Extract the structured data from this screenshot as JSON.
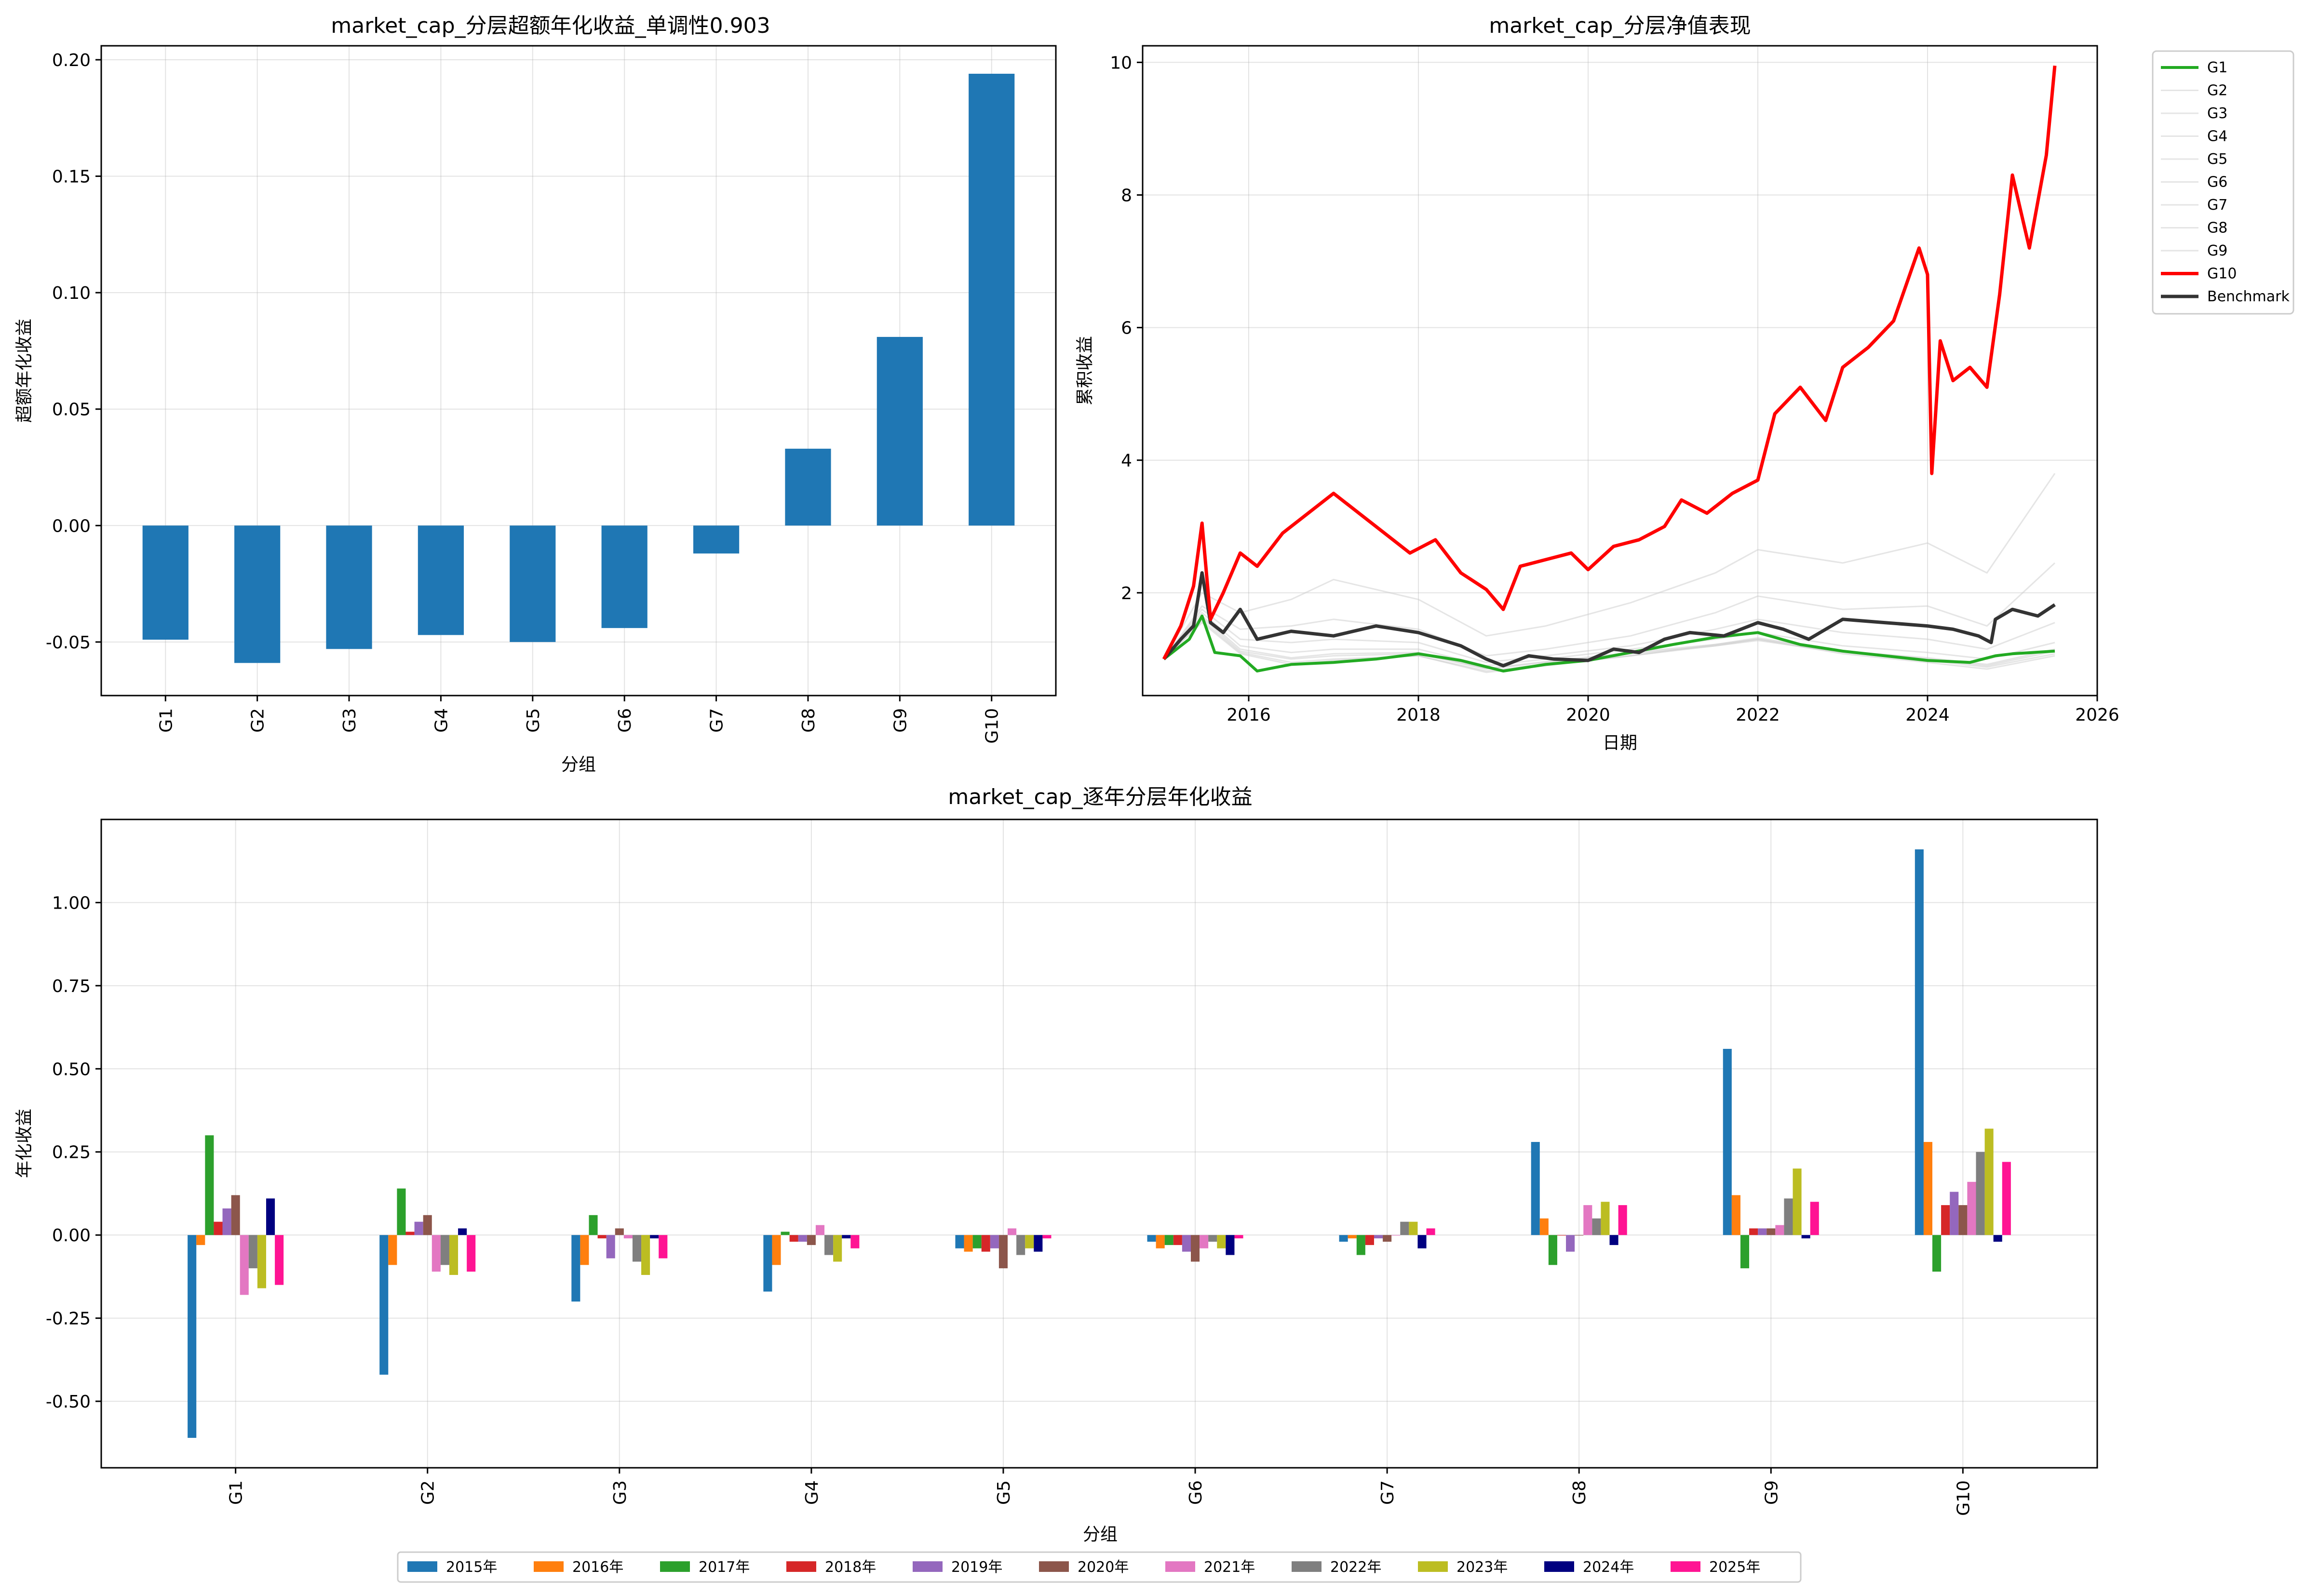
{
  "chart_data": [
    {
      "id": "excess",
      "type": "bar",
      "title": "market_cap_分层超额年化收益_单调性0.903",
      "xlabel": "分组",
      "ylabel": "超额年化收益",
      "categories": [
        "G1",
        "G2",
        "G3",
        "G4",
        "G5",
        "G6",
        "G7",
        "G8",
        "G9",
        "G10"
      ],
      "values": [
        -0.049,
        -0.059,
        -0.053,
        -0.047,
        -0.05,
        -0.044,
        -0.012,
        0.033,
        0.081,
        0.194
      ],
      "ylim": [
        -0.073,
        0.206
      ],
      "yticks": [
        -0.05,
        0.0,
        0.05,
        0.1,
        0.15,
        0.2
      ],
      "ytick_labels": [
        "-0.05",
        "0.00",
        "0.05",
        "0.10",
        "0.15",
        "0.20"
      ],
      "color": "#1f77b4",
      "grid": true
    },
    {
      "id": "nav",
      "type": "line",
      "title": "market_cap_分层净值表现",
      "xlabel": "日期",
      "ylabel": "累积收益",
      "xlim": [
        2014.75,
        2026.0
      ],
      "ylim": [
        0.45,
        10.25
      ],
      "xticks": [
        2016,
        2018,
        2020,
        2022,
        2024,
        2026
      ],
      "xtick_labels": [
        "2016",
        "2018",
        "2020",
        "2022",
        "2024",
        "2026"
      ],
      "yticks": [
        2,
        4,
        6,
        8,
        10
      ],
      "ytick_labels": [
        "2",
        "4",
        "6",
        "8",
        "10"
      ],
      "legend_position": "outside-top-right",
      "grid": true,
      "series": [
        {
          "name": "G1",
          "color": "#22aa22",
          "width": 6,
          "opacity": 1.0,
          "x": [
            2015.0,
            2015.3,
            2015.45,
            2015.6,
            2015.9,
            2016.1,
            2016.5,
            2017.0,
            2017.5,
            2018.0,
            2018.5,
            2019.0,
            2019.5,
            2020.0,
            2020.5,
            2021.0,
            2021.5,
            2022.0,
            2022.5,
            2023.0,
            2023.5,
            2024.0,
            2024.5,
            2024.8,
            2025.0,
            2025.5
          ],
          "y": [
            1.0,
            1.3,
            1.65,
            1.1,
            1.05,
            0.82,
            0.92,
            0.95,
            1.0,
            1.08,
            0.98,
            0.82,
            0.92,
            0.98,
            1.1,
            1.22,
            1.33,
            1.4,
            1.22,
            1.12,
            1.05,
            0.98,
            0.95,
            1.05,
            1.08,
            1.12
          ]
        },
        {
          "name": "G2",
          "color": "#cccccc",
          "width": 3,
          "opacity": 0.5,
          "x": [
            2015.0,
            2015.45,
            2015.9,
            2016.5,
            2017.0,
            2018.0,
            2018.8,
            2019.5,
            2020.5,
            2021.5,
            2022.0,
            2023.0,
            2024.0,
            2024.7,
            2025.5
          ],
          "y": [
            1.0,
            1.55,
            1.08,
            0.92,
            0.98,
            1.05,
            0.8,
            0.9,
            1.05,
            1.22,
            1.3,
            1.08,
            0.95,
            0.85,
            1.05
          ]
        },
        {
          "name": "G3",
          "color": "#cccccc",
          "width": 3,
          "opacity": 0.5,
          "x": [
            2015.0,
            2015.45,
            2015.9,
            2016.5,
            2017.0,
            2018.0,
            2018.8,
            2019.5,
            2020.5,
            2021.5,
            2022.0,
            2023.0,
            2024.0,
            2024.7,
            2025.5
          ],
          "y": [
            1.0,
            1.58,
            1.1,
            0.95,
            1.0,
            1.05,
            0.82,
            0.92,
            1.05,
            1.2,
            1.28,
            1.1,
            0.98,
            0.88,
            1.08
          ]
        },
        {
          "name": "G4",
          "color": "#cccccc",
          "width": 3,
          "opacity": 0.5,
          "x": [
            2015.0,
            2015.45,
            2015.9,
            2016.5,
            2017.0,
            2018.0,
            2018.8,
            2019.5,
            2020.5,
            2021.5,
            2022.0,
            2023.0,
            2024.0,
            2024.7,
            2025.5
          ],
          "y": [
            1.0,
            1.62,
            1.12,
            1.0,
            1.05,
            1.08,
            0.85,
            0.95,
            1.08,
            1.2,
            1.3,
            1.12,
            1.0,
            0.9,
            1.12
          ]
        },
        {
          "name": "G5",
          "color": "#cccccc",
          "width": 3,
          "opacity": 0.5,
          "x": [
            2015.0,
            2015.45,
            2015.9,
            2016.5,
            2017.0,
            2018.0,
            2018.8,
            2019.5,
            2020.5,
            2021.5,
            2022.0,
            2023.0,
            2024.0,
            2024.7,
            2025.5
          ],
          "y": [
            1.0,
            1.65,
            1.15,
            1.02,
            1.08,
            1.1,
            0.86,
            0.96,
            1.1,
            1.22,
            1.32,
            1.12,
            1.02,
            0.92,
            1.15
          ]
        },
        {
          "name": "G6",
          "color": "#cccccc",
          "width": 3,
          "opacity": 0.5,
          "x": [
            2015.0,
            2015.45,
            2015.9,
            2016.5,
            2017.0,
            2018.0,
            2018.8,
            2019.5,
            2020.5,
            2021.5,
            2022.0,
            2023.0,
            2024.0,
            2024.7,
            2025.5
          ],
          "y": [
            1.0,
            1.7,
            1.2,
            1.1,
            1.15,
            1.15,
            0.9,
            1.0,
            1.15,
            1.3,
            1.4,
            1.2,
            1.1,
            1.0,
            1.25
          ]
        },
        {
          "name": "G7",
          "color": "#cccccc",
          "width": 3,
          "opacity": 0.5,
          "x": [
            2015.0,
            2015.45,
            2015.9,
            2016.5,
            2017.0,
            2018.0,
            2018.8,
            2019.5,
            2020.5,
            2021.5,
            2022.0,
            2023.0,
            2024.0,
            2024.7,
            2025.5
          ],
          "y": [
            1.0,
            1.75,
            1.3,
            1.25,
            1.3,
            1.25,
            0.95,
            1.05,
            1.2,
            1.45,
            1.6,
            1.4,
            1.3,
            1.15,
            1.55
          ]
        },
        {
          "name": "G8",
          "color": "#cccccc",
          "width": 3,
          "opacity": 0.5,
          "x": [
            2015.0,
            2015.45,
            2015.9,
            2016.5,
            2017.0,
            2018.0,
            2018.8,
            2019.5,
            2020.5,
            2021.5,
            2022.0,
            2023.0,
            2024.0,
            2024.7,
            2025.5
          ],
          "y": [
            1.0,
            1.8,
            1.45,
            1.5,
            1.6,
            1.45,
            1.05,
            1.15,
            1.35,
            1.7,
            1.95,
            1.75,
            1.8,
            1.5,
            2.45
          ]
        },
        {
          "name": "G9",
          "color": "#cccccc",
          "width": 3,
          "opacity": 0.5,
          "x": [
            2015.0,
            2015.45,
            2015.9,
            2016.5,
            2017.0,
            2018.0,
            2018.8,
            2019.5,
            2020.5,
            2021.5,
            2022.0,
            2023.0,
            2024.0,
            2024.7,
            2025.5
          ],
          "y": [
            1.0,
            2.0,
            1.7,
            1.9,
            2.2,
            1.9,
            1.35,
            1.5,
            1.85,
            2.3,
            2.65,
            2.45,
            2.75,
            2.3,
            3.8
          ]
        },
        {
          "name": "G10",
          "color": "#ff0000",
          "width": 7,
          "opacity": 1.0,
          "x": [
            2015.0,
            2015.2,
            2015.35,
            2015.45,
            2015.55,
            2015.7,
            2015.9,
            2016.1,
            2016.4,
            2016.7,
            2017.0,
            2017.3,
            2017.6,
            2017.9,
            2018.2,
            2018.5,
            2018.8,
            2019.0,
            2019.2,
            2019.5,
            2019.8,
            2020.0,
            2020.3,
            2020.6,
            2020.9,
            2021.1,
            2021.4,
            2021.7,
            2022.0,
            2022.2,
            2022.5,
            2022.8,
            2023.0,
            2023.3,
            2023.6,
            2023.9,
            2024.0,
            2024.05,
            2024.15,
            2024.3,
            2024.5,
            2024.7,
            2024.85,
            2025.0,
            2025.2,
            2025.4,
            2025.5
          ],
          "y": [
            1.0,
            1.5,
            2.1,
            3.05,
            1.6,
            2.0,
            2.6,
            2.4,
            2.9,
            3.2,
            3.5,
            3.2,
            2.9,
            2.6,
            2.8,
            2.3,
            2.05,
            1.75,
            2.4,
            2.5,
            2.6,
            2.35,
            2.7,
            2.8,
            3.0,
            3.4,
            3.2,
            3.5,
            3.7,
            4.7,
            5.1,
            4.6,
            5.4,
            5.7,
            6.1,
            7.2,
            6.8,
            3.8,
            5.8,
            5.2,
            5.4,
            5.1,
            6.5,
            8.3,
            7.2,
            8.6,
            9.95
          ]
        },
        {
          "name": "Benchmark",
          "color": "#333333",
          "width": 7,
          "opacity": 1.0,
          "x": [
            2015.0,
            2015.2,
            2015.35,
            2015.45,
            2015.55,
            2015.7,
            2015.9,
            2016.1,
            2016.5,
            2017.0,
            2017.5,
            2018.0,
            2018.5,
            2018.8,
            2019.0,
            2019.3,
            2019.6,
            2020.0,
            2020.3,
            2020.6,
            2020.9,
            2021.2,
            2021.6,
            2022.0,
            2022.3,
            2022.6,
            2023.0,
            2023.5,
            2024.0,
            2024.3,
            2024.6,
            2024.75,
            2024.8,
            2025.0,
            2025.3,
            2025.5
          ],
          "y": [
            1.0,
            1.3,
            1.5,
            2.3,
            1.55,
            1.4,
            1.75,
            1.3,
            1.42,
            1.35,
            1.5,
            1.4,
            1.2,
            1.0,
            0.9,
            1.05,
            1.0,
            0.98,
            1.15,
            1.1,
            1.3,
            1.4,
            1.35,
            1.55,
            1.45,
            1.3,
            1.6,
            1.55,
            1.5,
            1.45,
            1.35,
            1.25,
            1.6,
            1.75,
            1.65,
            1.82
          ]
        }
      ]
    },
    {
      "id": "yearly",
      "type": "bar",
      "title": "market_cap_逐年分层年化收益",
      "xlabel": "分组",
      "ylabel": "年化收益",
      "categories": [
        "G1",
        "G2",
        "G3",
        "G4",
        "G5",
        "G6",
        "G7",
        "G8",
        "G9",
        "G10"
      ],
      "ylim": [
        -0.7,
        1.25
      ],
      "yticks": [
        -0.5,
        -0.25,
        0.0,
        0.25,
        0.5,
        0.75,
        1.0
      ],
      "ytick_labels": [
        "-0.50",
        "-0.25",
        "0.00",
        "0.25",
        "0.50",
        "0.75",
        "1.00"
      ],
      "legend_position": "bottom-center",
      "grid": true,
      "series": [
        {
          "name": "2015年",
          "color": "#1f77b4",
          "values": [
            -0.61,
            -0.42,
            -0.2,
            -0.17,
            -0.04,
            -0.02,
            -0.02,
            0.28,
            0.56,
            1.16
          ]
        },
        {
          "name": "2016年",
          "color": "#ff7f0e",
          "values": [
            -0.03,
            -0.09,
            -0.09,
            -0.09,
            -0.05,
            -0.04,
            -0.01,
            0.05,
            0.12,
            0.28
          ]
        },
        {
          "name": "2017年",
          "color": "#2ca02c",
          "values": [
            0.3,
            0.14,
            0.06,
            0.01,
            -0.04,
            -0.03,
            -0.06,
            -0.09,
            -0.1,
            -0.11
          ]
        },
        {
          "name": "2018年",
          "color": "#d62728",
          "values": [
            0.04,
            0.01,
            -0.01,
            -0.02,
            -0.05,
            -0.03,
            -0.03,
            0.0,
            0.02,
            0.09
          ]
        },
        {
          "name": "2019年",
          "color": "#9467bd",
          "values": [
            0.08,
            0.04,
            -0.07,
            -0.02,
            -0.04,
            -0.05,
            -0.01,
            -0.05,
            0.02,
            0.13
          ]
        },
        {
          "name": "2020年",
          "color": "#8c564b",
          "values": [
            0.12,
            0.06,
            0.02,
            -0.03,
            -0.1,
            -0.08,
            -0.02,
            0.0,
            0.02,
            0.09
          ]
        },
        {
          "name": "2021年",
          "color": "#e377c2",
          "values": [
            -0.18,
            -0.11,
            -0.01,
            0.03,
            0.02,
            -0.04,
            0.0,
            0.09,
            0.03,
            0.16
          ]
        },
        {
          "name": "2022年",
          "color": "#7f7f7f",
          "values": [
            -0.1,
            -0.09,
            -0.08,
            -0.06,
            -0.06,
            -0.02,
            0.04,
            0.05,
            0.11,
            0.25
          ]
        },
        {
          "name": "2023年",
          "color": "#bcbd22",
          "values": [
            -0.16,
            -0.12,
            -0.12,
            -0.08,
            -0.04,
            -0.04,
            0.04,
            0.1,
            0.2,
            0.32
          ]
        },
        {
          "name": "2024年",
          "color": "#000080",
          "values": [
            0.11,
            0.02,
            -0.01,
            -0.01,
            -0.05,
            -0.06,
            -0.04,
            -0.03,
            -0.01,
            -0.02
          ]
        },
        {
          "name": "2025年",
          "color": "#ff1493",
          "values": [
            -0.15,
            -0.11,
            -0.07,
            -0.04,
            -0.01,
            -0.01,
            0.02,
            0.09,
            0.1,
            0.22
          ]
        }
      ]
    }
  ]
}
